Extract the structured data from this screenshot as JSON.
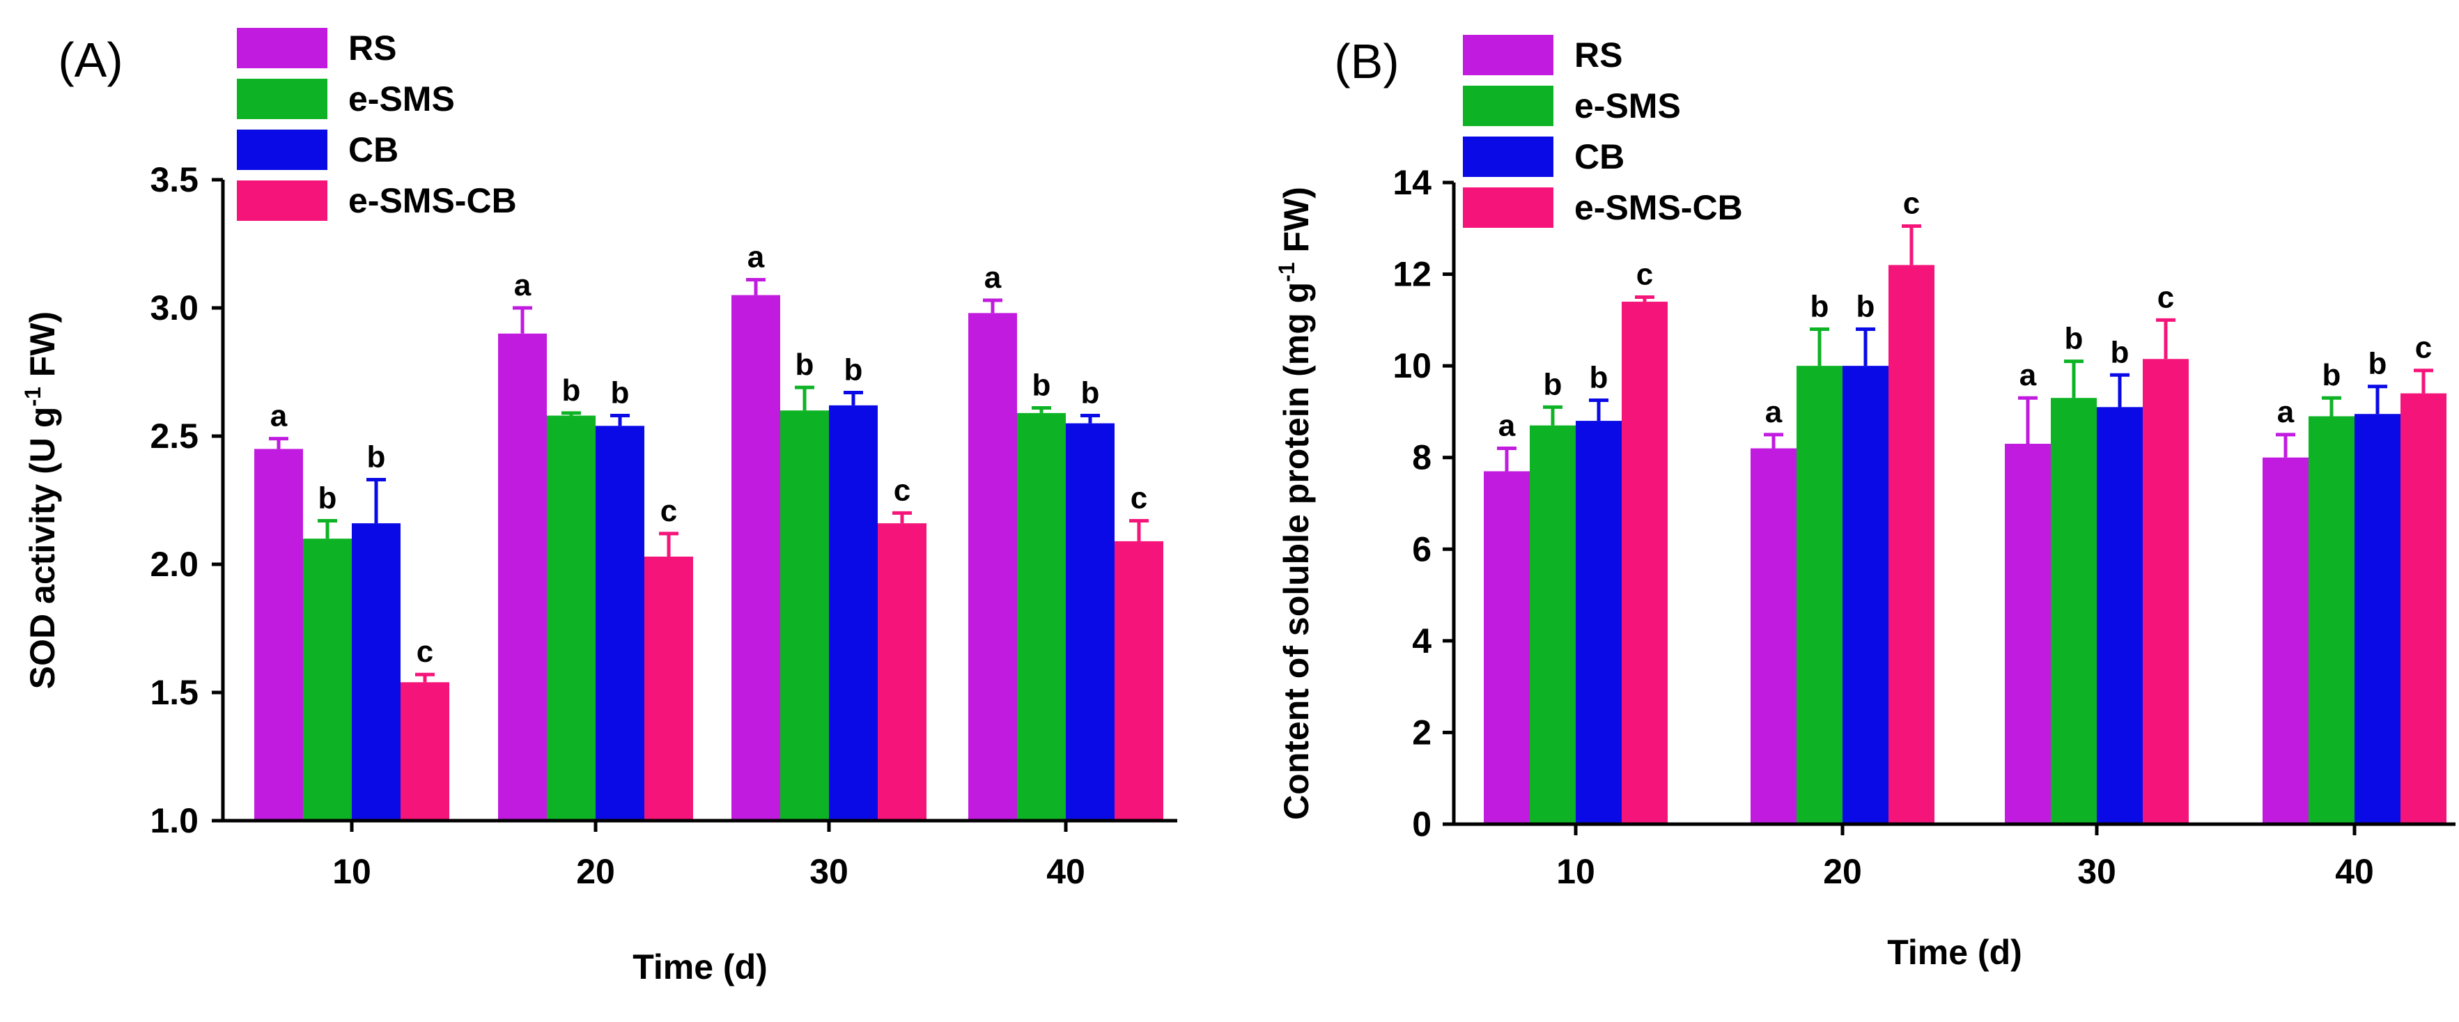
{
  "chart_data": [
    {
      "type": "bar",
      "panel_label": "(A)",
      "categories": [
        "10",
        "20",
        "30",
        "40"
      ],
      "series": [
        {
          "name": "RS",
          "color": "#c21be0",
          "values": [
            2.45,
            2.9,
            3.05,
            2.98
          ],
          "errors": [
            0.04,
            0.1,
            0.06,
            0.05
          ],
          "labels": [
            "a",
            "a",
            "a",
            "a"
          ]
        },
        {
          "name": "e-SMS",
          "color": "#0db324",
          "values": [
            2.1,
            2.58,
            2.6,
            2.59
          ],
          "errors": [
            0.07,
            0.01,
            0.09,
            0.02
          ],
          "labels": [
            "b",
            "b",
            "b",
            "b"
          ]
        },
        {
          "name": "CB",
          "color": "#0a0ae6",
          "values": [
            2.16,
            2.54,
            2.62,
            2.55
          ],
          "errors": [
            0.17,
            0.04,
            0.05,
            0.03
          ],
          "labels": [
            "b",
            "b",
            "b",
            "b"
          ]
        },
        {
          "name": "e-SMS-CB",
          "color": "#f5157a",
          "values": [
            1.54,
            2.03,
            2.16,
            2.09
          ],
          "errors": [
            0.03,
            0.09,
            0.04,
            0.08
          ],
          "labels": [
            "c",
            "c",
            "c",
            "c"
          ]
        }
      ],
      "xlabel": "Time (d)",
      "ylabel_parts": {
        "pre": "SOD activity (U g",
        "sup": "-1",
        "post": " FW)"
      },
      "ylim": [
        1.0,
        3.5
      ],
      "yticks": [
        "1.0",
        "1.5",
        "2.0",
        "2.5",
        "3.0",
        "3.5"
      ],
      "legend_position": "top-left"
    },
    {
      "type": "bar",
      "panel_label": "(B)",
      "categories": [
        "10",
        "20",
        "30",
        "40"
      ],
      "series": [
        {
          "name": "RS",
          "color": "#c21be0",
          "values": [
            7.7,
            8.2,
            8.3,
            8.0
          ],
          "errors": [
            0.5,
            0.3,
            1.0,
            0.5
          ],
          "labels": [
            "a",
            "a",
            "a",
            "a"
          ]
        },
        {
          "name": "e-SMS",
          "color": "#0db324",
          "values": [
            8.7,
            10.0,
            9.3,
            8.9
          ],
          "errors": [
            0.4,
            0.8,
            0.8,
            0.4
          ],
          "labels": [
            "b",
            "b",
            "b",
            "b"
          ]
        },
        {
          "name": "CB",
          "color": "#0a0ae6",
          "values": [
            8.8,
            10.0,
            9.1,
            8.95
          ],
          "errors": [
            0.45,
            0.8,
            0.7,
            0.6
          ],
          "labels": [
            "b",
            "b",
            "b",
            "b"
          ]
        },
        {
          "name": "e-SMS-CB",
          "color": "#f5157a",
          "values": [
            11.4,
            12.2,
            10.15,
            9.4
          ],
          "errors": [
            0.1,
            0.85,
            0.85,
            0.5
          ],
          "labels": [
            "c",
            "c",
            "c",
            "c"
          ]
        }
      ],
      "xlabel": "Time (d)",
      "ylabel_parts": {
        "pre": "Content of soluble protein (mg g",
        "sup": "-1",
        "post": " FW)"
      },
      "ylim": [
        0,
        14
      ],
      "yticks": [
        "0",
        "2",
        "4",
        "6",
        "8",
        "10",
        "12",
        "14"
      ],
      "legend_position": "top-left"
    }
  ]
}
